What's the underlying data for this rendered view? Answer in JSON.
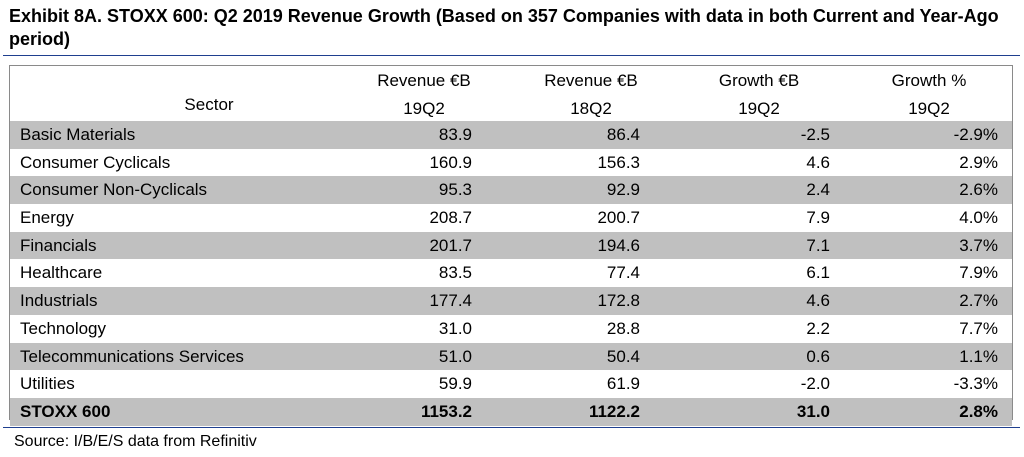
{
  "title": "Exhibit 8A.  STOXX 600: Q2 2019 Revenue Growth (Based on 357 Companies with data in both Current and Year-Ago period)",
  "source": "Source: I/B/E/S data from Refinitiv",
  "chart_data": {
    "type": "table",
    "columns": [
      {
        "line1": "",
        "line2": "Sector"
      },
      {
        "line1": "Revenue €B",
        "line2": "19Q2"
      },
      {
        "line1": "Revenue €B",
        "line2": "18Q2"
      },
      {
        "line1": "Growth €B",
        "line2": "19Q2"
      },
      {
        "line1": "Growth %",
        "line2": "19Q2"
      }
    ],
    "rows": [
      {
        "sector": "Basic Materials",
        "rev_19q2": "83.9",
        "rev_18q2": "86.4",
        "growth_eur": "-2.5",
        "growth_pct": "-2.9%"
      },
      {
        "sector": "Consumer Cyclicals",
        "rev_19q2": "160.9",
        "rev_18q2": "156.3",
        "growth_eur": "4.6",
        "growth_pct": "2.9%"
      },
      {
        "sector": "Consumer Non-Cyclicals",
        "rev_19q2": "95.3",
        "rev_18q2": "92.9",
        "growth_eur": "2.4",
        "growth_pct": "2.6%"
      },
      {
        "sector": "Energy",
        "rev_19q2": "208.7",
        "rev_18q2": "200.7",
        "growth_eur": "7.9",
        "growth_pct": "4.0%"
      },
      {
        "sector": "Financials",
        "rev_19q2": "201.7",
        "rev_18q2": "194.6",
        "growth_eur": "7.1",
        "growth_pct": "3.7%"
      },
      {
        "sector": "Healthcare",
        "rev_19q2": "83.5",
        "rev_18q2": "77.4",
        "growth_eur": "6.1",
        "growth_pct": "7.9%"
      },
      {
        "sector": "Industrials",
        "rev_19q2": "177.4",
        "rev_18q2": "172.8",
        "growth_eur": "4.6",
        "growth_pct": "2.7%"
      },
      {
        "sector": "Technology",
        "rev_19q2": "31.0",
        "rev_18q2": "28.8",
        "growth_eur": "2.2",
        "growth_pct": "7.7%"
      },
      {
        "sector": "Telecommunications Services",
        "rev_19q2": "51.0",
        "rev_18q2": "50.4",
        "growth_eur": "0.6",
        "growth_pct": "1.1%"
      },
      {
        "sector": "Utilities",
        "rev_19q2": "59.9",
        "rev_18q2": "61.9",
        "growth_eur": "-2.0",
        "growth_pct": "-3.3%"
      },
      {
        "sector": "STOXX 600",
        "rev_19q2": "1153.2",
        "rev_18q2": "1122.2",
        "growth_eur": "31.0",
        "growth_pct": "2.8%",
        "is_total": true
      }
    ],
    "row_shading": "alternating",
    "shade_color": "#c0c0c0",
    "rule_color": "#1f3f8f"
  }
}
